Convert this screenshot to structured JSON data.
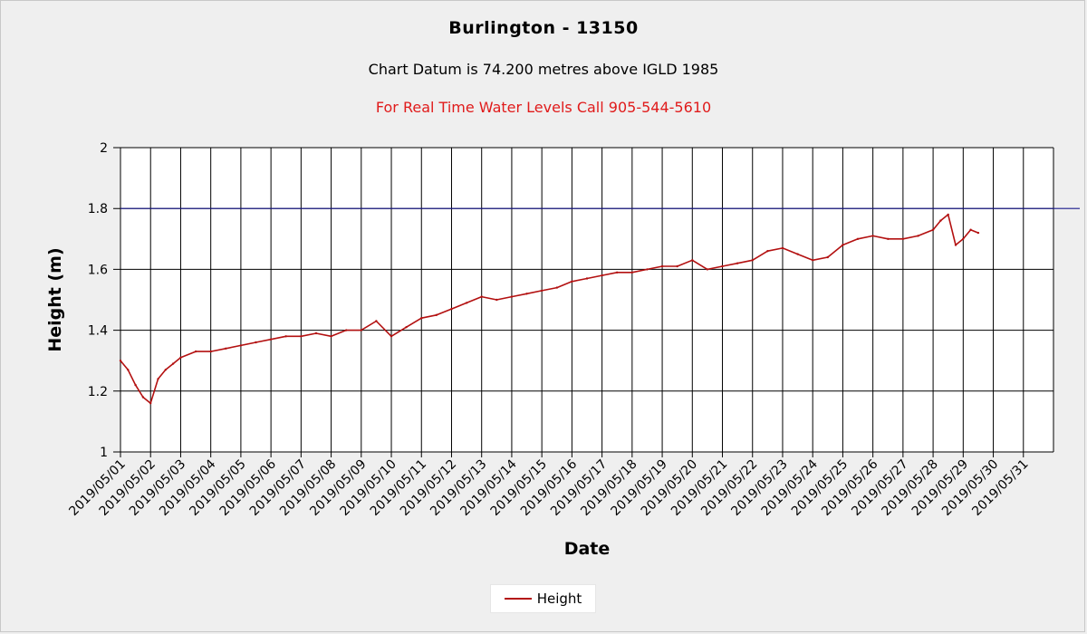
{
  "colors": {
    "background": "#efefef",
    "plot_background": "#ffffff",
    "series": "#b31010",
    "chart_datum_line": "#1a1a8c",
    "notice": "#e01b1b",
    "grid": "#000000"
  },
  "header": {
    "title": "Burlington - 13150",
    "subtitle": "Chart Datum is 74.200 metres above IGLD 1985",
    "notice": "For Real Time Water Levels Call 905-544-5610"
  },
  "chart_data": {
    "type": "line",
    "title": "Burlington - 13150",
    "xlabel": "Date",
    "ylabel": "Height (m)",
    "ylim": [
      1,
      2
    ],
    "yticks": [
      "1",
      "1.2",
      "1.4",
      "1.6",
      "1.8",
      "2"
    ],
    "xticks": [
      "2019/05/01",
      "2019/05/02",
      "2019/05/03",
      "2019/05/04",
      "2019/05/05",
      "2019/05/06",
      "2019/05/07",
      "2019/05/08",
      "2019/05/09",
      "2019/05/10",
      "2019/05/11",
      "2019/05/12",
      "2019/05/13",
      "2019/05/14",
      "2019/05/15",
      "2019/05/16",
      "2019/05/17",
      "2019/05/18",
      "2019/05/19",
      "2019/05/20",
      "2019/05/21",
      "2019/05/22",
      "2019/05/23",
      "2019/05/24",
      "2019/05/25",
      "2019/05/26",
      "2019/05/27",
      "2019/05/28",
      "2019/05/29",
      "2019/05/30",
      "2019/05/31"
    ],
    "xlim": [
      "2019/05/01",
      "2019/06/01"
    ],
    "grid": true,
    "legend_position": "bottom-center",
    "reference_line": {
      "y": 1.8
    },
    "series": [
      {
        "name": "Height",
        "x": [
          "2019/05/01 00:00",
          "2019/05/01 06:00",
          "2019/05/01 12:00",
          "2019/05/01 18:00",
          "2019/05/02 00:00",
          "2019/05/02 06:00",
          "2019/05/02 12:00",
          "2019/05/02 18:00",
          "2019/05/03 00:00",
          "2019/05/03 12:00",
          "2019/05/04 00:00",
          "2019/05/04 12:00",
          "2019/05/05 00:00",
          "2019/05/05 12:00",
          "2019/05/06 00:00",
          "2019/05/06 12:00",
          "2019/05/07 00:00",
          "2019/05/07 12:00",
          "2019/05/08 00:00",
          "2019/05/08 12:00",
          "2019/05/09 00:00",
          "2019/05/09 12:00",
          "2019/05/10 00:00",
          "2019/05/10 12:00",
          "2019/05/11 00:00",
          "2019/05/11 12:00",
          "2019/05/12 00:00",
          "2019/05/12 12:00",
          "2019/05/13 00:00",
          "2019/05/13 12:00",
          "2019/05/14 00:00",
          "2019/05/14 12:00",
          "2019/05/15 00:00",
          "2019/05/15 12:00",
          "2019/05/16 00:00",
          "2019/05/16 12:00",
          "2019/05/17 00:00",
          "2019/05/17 12:00",
          "2019/05/18 00:00",
          "2019/05/18 12:00",
          "2019/05/19 00:00",
          "2019/05/19 12:00",
          "2019/05/20 00:00",
          "2019/05/20 12:00",
          "2019/05/21 00:00",
          "2019/05/21 12:00",
          "2019/05/22 00:00",
          "2019/05/22 12:00",
          "2019/05/23 00:00",
          "2019/05/23 12:00",
          "2019/05/24 00:00",
          "2019/05/24 12:00",
          "2019/05/25 00:00",
          "2019/05/25 12:00",
          "2019/05/26 00:00",
          "2019/05/26 12:00",
          "2019/05/27 00:00",
          "2019/05/27 12:00",
          "2019/05/28 00:00",
          "2019/05/28 06:00",
          "2019/05/28 12:00",
          "2019/05/28 18:00",
          "2019/05/29 00:00",
          "2019/05/29 06:00",
          "2019/05/29 12:00"
        ],
        "y": [
          1.3,
          1.27,
          1.22,
          1.18,
          1.16,
          1.24,
          1.27,
          1.29,
          1.31,
          1.33,
          1.33,
          1.34,
          1.35,
          1.36,
          1.37,
          1.38,
          1.38,
          1.39,
          1.38,
          1.4,
          1.4,
          1.43,
          1.38,
          1.41,
          1.44,
          1.45,
          1.47,
          1.49,
          1.51,
          1.5,
          1.51,
          1.52,
          1.53,
          1.54,
          1.56,
          1.57,
          1.58,
          1.59,
          1.59,
          1.6,
          1.61,
          1.61,
          1.63,
          1.6,
          1.61,
          1.62,
          1.63,
          1.66,
          1.67,
          1.65,
          1.63,
          1.64,
          1.68,
          1.7,
          1.71,
          1.7,
          1.7,
          1.71,
          1.73,
          1.76,
          1.78,
          1.68,
          1.7,
          1.73,
          1.72
        ]
      }
    ]
  },
  "legend": {
    "label": "Height"
  }
}
